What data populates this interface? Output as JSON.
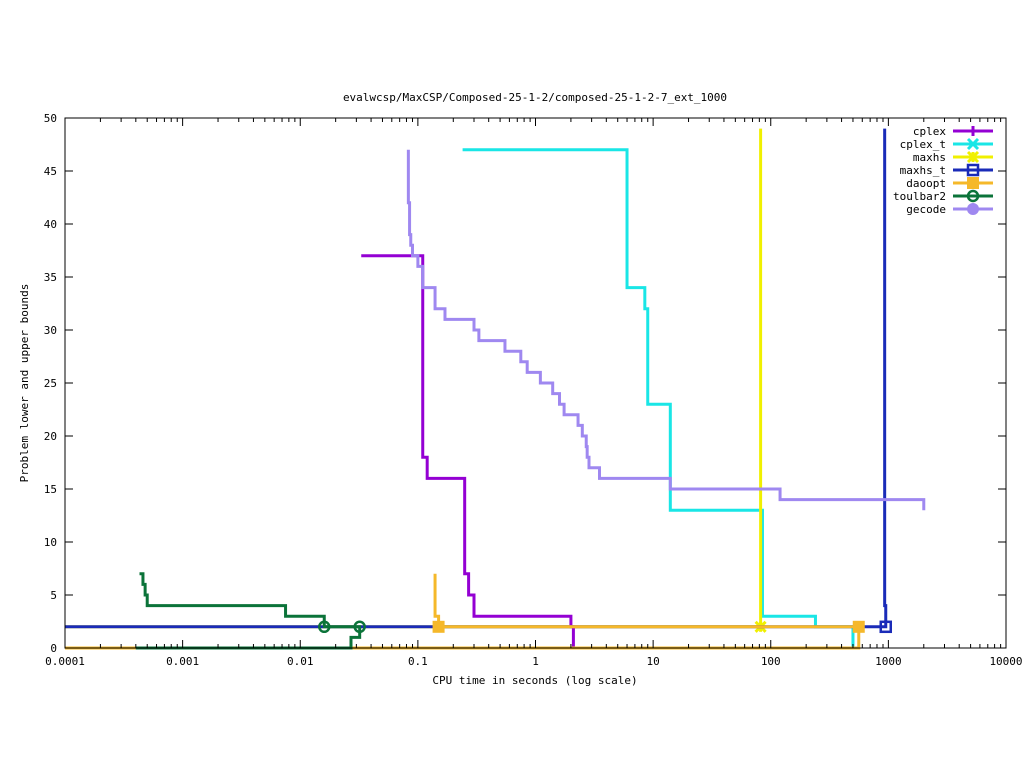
{
  "chart_data": {
    "type": "line",
    "title": "evalwcsp/MaxCSP/Composed-25-1-2/composed-25-1-2-7_ext_1000",
    "xlabel": "CPU time in seconds (log scale)",
    "ylabel": "Problem lower and upper bounds",
    "xscale": "log",
    "xlim": [
      0.0001,
      10000
    ],
    "ylim": [
      0,
      50
    ],
    "xticks": [
      0.0001,
      0.001,
      0.01,
      0.1,
      1,
      10,
      100,
      1000,
      10000
    ],
    "xtick_labels": [
      "0.0001",
      "0.001",
      "0.01",
      "0.1",
      "1",
      "10",
      "100",
      "1000",
      "10000"
    ],
    "yticks": [
      0,
      5,
      10,
      15,
      20,
      25,
      30,
      35,
      40,
      45,
      50
    ],
    "ytick_labels": [
      "0",
      "5",
      "10",
      "15",
      "20",
      "25",
      "30",
      "35",
      "40",
      "45",
      "50"
    ],
    "grid": false,
    "legend_position": "top-right",
    "series": [
      {
        "name": "cplex",
        "color": "#9400d3",
        "marker": "plus",
        "points": [
          [
            0.033,
            37
          ],
          [
            0.11,
            37
          ],
          [
            0.11,
            18
          ],
          [
            0.12,
            18
          ],
          [
            0.12,
            16
          ],
          [
            0.25,
            16
          ],
          [
            0.25,
            7
          ],
          [
            0.27,
            7
          ],
          [
            0.27,
            5
          ],
          [
            0.3,
            5
          ],
          [
            0.3,
            3
          ],
          [
            2.0,
            3
          ],
          [
            2.0,
            2
          ],
          [
            2.1,
            2
          ],
          [
            2.1,
            0
          ]
        ],
        "marker_points": []
      },
      {
        "name": "cplex_t",
        "color": "#19e6e6",
        "marker": "x",
        "points": [
          [
            0.24,
            47
          ],
          [
            6.0,
            47
          ],
          [
            6.0,
            34
          ],
          [
            8.5,
            34
          ],
          [
            8.5,
            32
          ],
          [
            9.0,
            32
          ],
          [
            9.0,
            23
          ],
          [
            14,
            23
          ],
          [
            14,
            13
          ],
          [
            85,
            13
          ],
          [
            85,
            3
          ],
          [
            240,
            3
          ],
          [
            240,
            2
          ],
          [
            500,
            2
          ],
          [
            500,
            0
          ]
        ],
        "marker_points": []
      },
      {
        "name": "maxhs",
        "color": "#f0f000",
        "marker": "star",
        "points": [
          [
            82,
            49
          ],
          [
            82,
            2
          ],
          [
            0.0001,
            2
          ],
          [
            82,
            2
          ]
        ],
        "marker_points": [
          [
            82,
            2
          ]
        ]
      },
      {
        "name": "maxhs_t",
        "color": "#1a2bb8",
        "marker": "square",
        "points": [
          [
            930,
            49
          ],
          [
            930,
            4
          ],
          [
            950,
            4
          ],
          [
            950,
            2
          ],
          [
            0.0001,
            2
          ],
          [
            950,
            2
          ]
        ],
        "marker_points": [
          [
            950,
            2
          ]
        ]
      },
      {
        "name": "daoopt",
        "color": "#f5b82a",
        "marker": "filled-square",
        "points": [
          [
            0.14,
            7
          ],
          [
            0.14,
            3
          ],
          [
            0.15,
            3
          ],
          [
            0.15,
            2
          ],
          [
            560,
            2
          ],
          [
            560,
            0
          ],
          [
            0.0001,
            0
          ]
        ],
        "marker_points": [
          [
            0.15,
            2
          ],
          [
            560,
            2
          ]
        ]
      },
      {
        "name": "toulbar2",
        "color": "#0b7339",
        "marker": "circle",
        "points": [
          [
            0.00043,
            7
          ],
          [
            0.00046,
            7
          ],
          [
            0.00046,
            6
          ],
          [
            0.00048,
            6
          ],
          [
            0.00048,
            5
          ],
          [
            0.0005,
            5
          ],
          [
            0.0005,
            4
          ],
          [
            0.0075,
            4
          ],
          [
            0.0075,
            3
          ],
          [
            0.016,
            3
          ],
          [
            0.016,
            2
          ],
          [
            0.032,
            2
          ],
          [
            0.032,
            1
          ],
          [
            0.03,
            1
          ],
          [
            0.027,
            1
          ],
          [
            0.027,
            0
          ],
          [
            0.0004,
            0
          ]
        ],
        "marker_points": [
          [
            0.016,
            2
          ],
          [
            0.032,
            2
          ]
        ]
      },
      {
        "name": "gecode",
        "color": "#9f88f0",
        "marker": "filled-circle",
        "points": [
          [
            0.083,
            47
          ],
          [
            0.083,
            42
          ],
          [
            0.085,
            42
          ],
          [
            0.085,
            39
          ],
          [
            0.087,
            39
          ],
          [
            0.087,
            38
          ],
          [
            0.09,
            38
          ],
          [
            0.09,
            37
          ],
          [
            0.1,
            37
          ],
          [
            0.1,
            36
          ],
          [
            0.11,
            36
          ],
          [
            0.11,
            34
          ],
          [
            0.14,
            34
          ],
          [
            0.14,
            32
          ],
          [
            0.17,
            32
          ],
          [
            0.17,
            31
          ],
          [
            0.3,
            31
          ],
          [
            0.3,
            30
          ],
          [
            0.33,
            30
          ],
          [
            0.33,
            29
          ],
          [
            0.55,
            29
          ],
          [
            0.55,
            28
          ],
          [
            0.75,
            28
          ],
          [
            0.75,
            27
          ],
          [
            0.85,
            27
          ],
          [
            0.85,
            26
          ],
          [
            1.1,
            26
          ],
          [
            1.1,
            25
          ],
          [
            1.4,
            25
          ],
          [
            1.4,
            24
          ],
          [
            1.6,
            24
          ],
          [
            1.6,
            23
          ],
          [
            1.75,
            23
          ],
          [
            1.75,
            22
          ],
          [
            2.3,
            22
          ],
          [
            2.3,
            21
          ],
          [
            2.5,
            21
          ],
          [
            2.5,
            20
          ],
          [
            2.7,
            20
          ],
          [
            2.7,
            19
          ],
          [
            2.75,
            19
          ],
          [
            2.75,
            18
          ],
          [
            2.85,
            18
          ],
          [
            2.85,
            17
          ],
          [
            3.5,
            17
          ],
          [
            3.5,
            16
          ],
          [
            14,
            16
          ],
          [
            14,
            15
          ],
          [
            120,
            15
          ],
          [
            120,
            14
          ],
          [
            2000,
            14
          ],
          [
            2000,
            13
          ]
        ],
        "marker_points": []
      }
    ]
  }
}
